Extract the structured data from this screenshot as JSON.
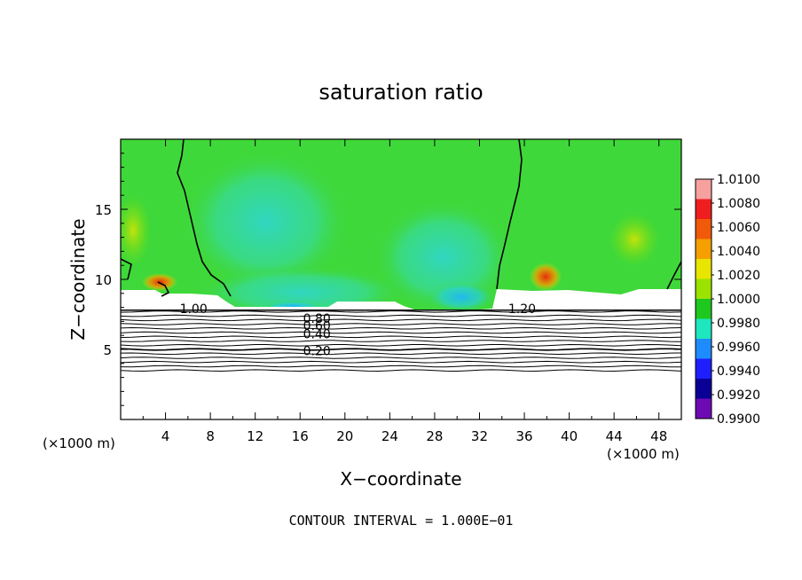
{
  "chart_data": {
    "type": "heatmap",
    "title": "saturation ratio",
    "xlabel": "X−coordinate",
    "ylabel": "Z−coordinate",
    "x_unit": "(×1000 m)",
    "z_unit": "(×1000 m)",
    "xlim": [
      0,
      50
    ],
    "ylim": [
      0,
      20
    ],
    "x_ticks": [
      "4",
      "8",
      "12",
      "16",
      "20",
      "24",
      "28",
      "32",
      "36",
      "40",
      "44",
      "48"
    ],
    "x_tick_values": [
      4,
      8,
      12,
      16,
      20,
      24,
      28,
      32,
      36,
      40,
      44,
      48
    ],
    "y_ticks": [
      "5",
      "10",
      "15"
    ],
    "y_tick_values": [
      5,
      10,
      15
    ],
    "contour_interval_text": "CONTOUR INTERVAL = 1.000E−01",
    "contour_labels": [
      {
        "text": "0.20",
        "x": 17.5,
        "z": 4.9
      },
      {
        "text": "0.40",
        "x": 17.5,
        "z": 6.1
      },
      {
        "text": "0.60",
        "x": 17.5,
        "z": 6.7
      },
      {
        "text": "0.80",
        "x": 17.5,
        "z": 7.2
      },
      {
        "text": "1.00",
        "x": 6.5,
        "z": 7.9
      },
      {
        "text": "1.20",
        "x": 35.8,
        "z": 7.9
      }
    ],
    "colorbar": {
      "labels": [
        "1.0100",
        "1.0080",
        "1.0060",
        "1.0040",
        "1.0020",
        "1.0000",
        "0.9980",
        "0.9960",
        "0.9940",
        "0.9920",
        "0.9900"
      ],
      "values": [
        1.01,
        1.008,
        1.006,
        1.004,
        1.002,
        1.0,
        0.998,
        0.996,
        0.994,
        0.992,
        0.99
      ],
      "colors": [
        "#f7a0a0",
        "#ef1e1e",
        "#f05a0a",
        "#f5a000",
        "#e8e600",
        "#9be200",
        "#1ec81e",
        "#1ee6be",
        "#1e8cff",
        "#1e1eff",
        "#0a0096",
        "#6e0ab4"
      ]
    },
    "background_color": "#3fd83a",
    "cloud_base_z": 7.8
  }
}
